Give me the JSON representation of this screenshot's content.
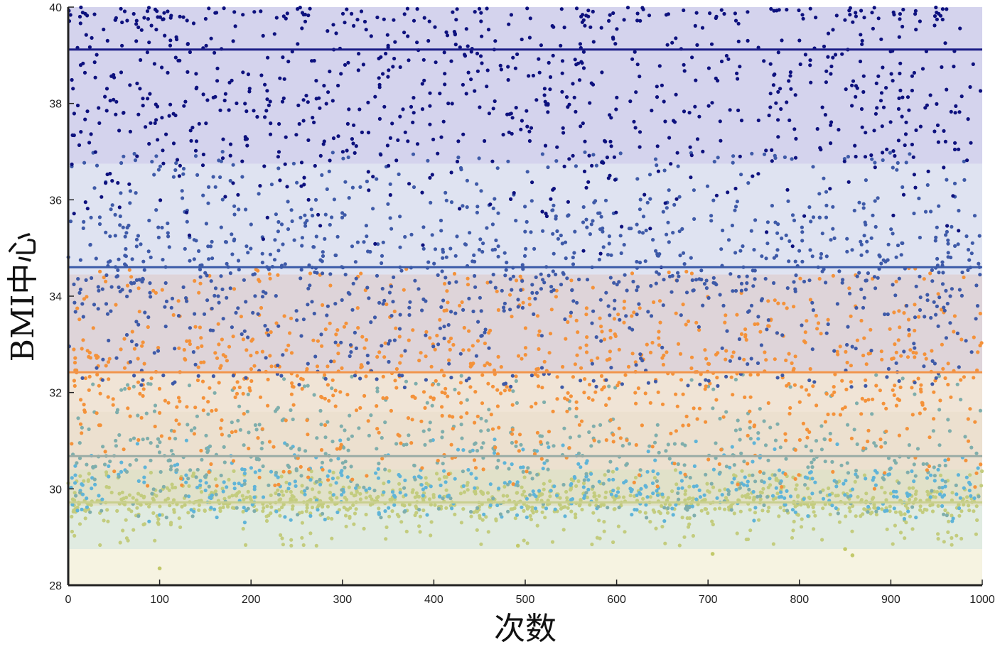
{
  "chart_data": {
    "type": "scatter",
    "xlabel": "次数",
    "ylabel": "BMI中心",
    "xlim": [
      0,
      1000
    ],
    "ylim": [
      28,
      40
    ],
    "xticks": [
      0,
      100,
      200,
      300,
      400,
      500,
      600,
      700,
      800,
      900,
      1000
    ],
    "yticks": [
      28,
      30,
      32,
      34,
      36,
      38,
      40
    ],
    "grid": false,
    "legend": "none",
    "bands": [
      {
        "y0": 28.0,
        "y1": 28.75,
        "color": "#f4f1dc"
      },
      {
        "y0": 28.75,
        "y1": 30.4,
        "color": "#dbe8dc"
      },
      {
        "y0": 29.65,
        "y1": 31.6,
        "color": "#e1dfc4"
      },
      {
        "y0": 30.4,
        "y1": 32.45,
        "color": "#eddfcf"
      },
      {
        "y0": 32.45,
        "y1": 34.45,
        "color": "#d8cdd2"
      },
      {
        "y0": 34.45,
        "y1": 36.75,
        "color": "#d9deee"
      },
      {
        "y0": 36.75,
        "y1": 40.0,
        "color": "#cdcbea"
      }
    ],
    "series": [
      {
        "color": "#c3cc7e",
        "center": 29.72,
        "spread": 0.18,
        "tail": 0.45,
        "low": 28.3,
        "high": 30.4,
        "count": 900,
        "line_color": "#c3cc7e"
      },
      {
        "color": "#5fb4d8",
        "center": 30.05,
        "spread": 0.3,
        "tail": 0.5,
        "low": 29.3,
        "high": 31.2,
        "count": 420,
        "line_color": null
      },
      {
        "color": "#7faeac",
        "center": 30.68,
        "spread": 0.55,
        "tail": 0.9,
        "low": 29.4,
        "high": 32.4,
        "count": 500,
        "line_color": "#8ea9a5"
      },
      {
        "color": "#f4923a",
        "center": 32.42,
        "spread": 0.9,
        "tail": 1.2,
        "low": 29.6,
        "high": 34.6,
        "count": 900,
        "line_color": "#f0934a"
      },
      {
        "color": "#3e5aa8",
        "center": 34.6,
        "spread": 0.9,
        "tail": 1.6,
        "low": 32.1,
        "high": 37.0,
        "count": 1100,
        "line_color": "#3a5aa8"
      },
      {
        "color": "#0d117e",
        "center": 38.4,
        "spread": 1.2,
        "tail": 1.4,
        "low": 34.5,
        "high": 40.0,
        "count": 900,
        "line_color": null
      }
    ],
    "reference_lines": [
      {
        "y": 39.12,
        "color": "#1a1c86"
      },
      {
        "y": 34.6,
        "color": "#3a5aa8"
      },
      {
        "y": 32.42,
        "color": "#f0934a"
      },
      {
        "y": 30.68,
        "color": "#9aaca6"
      },
      {
        "y": 29.72,
        "color": "#c9cf8f"
      }
    ],
    "outliers": [
      {
        "x": 100,
        "y": 28.35,
        "color": "#c3c96a"
      },
      {
        "x": 492,
        "y": 28.82,
        "color": "#c3c96a"
      },
      {
        "x": 705,
        "y": 28.65,
        "color": "#c3c96a"
      },
      {
        "x": 850,
        "y": 28.75,
        "color": "#c3c96a"
      },
      {
        "x": 858,
        "y": 28.62,
        "color": "#c3c96a"
      }
    ]
  }
}
